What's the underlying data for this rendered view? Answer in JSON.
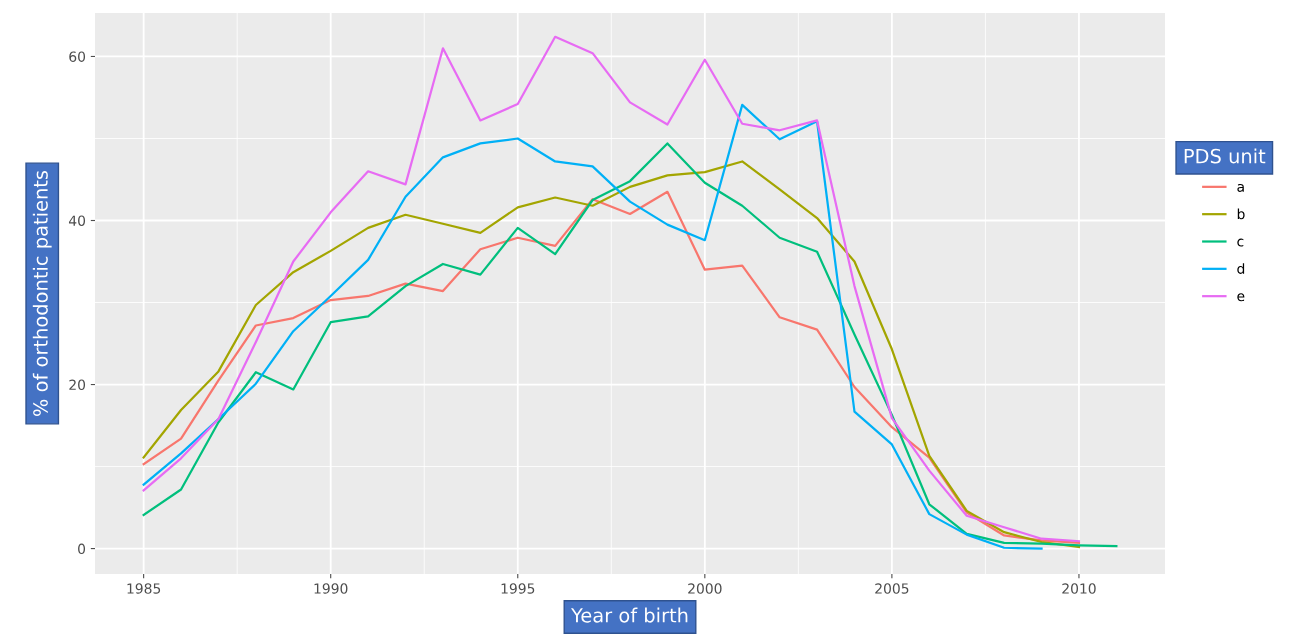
{
  "chart_data": {
    "type": "line",
    "xlabel": "Year of birth",
    "ylabel": "% of orthodontic patients",
    "legend_title": "PDS unit",
    "xlim": [
      1983.7,
      2012.3
    ],
    "ylim": [
      -3.1,
      65.3
    ],
    "xticks": [
      1985,
      1990,
      1995,
      2000,
      2005,
      2010
    ],
    "yticks": [
      0,
      20,
      40,
      60
    ],
    "grid": true,
    "legend": "right",
    "marker": "none",
    "line_style": "solid",
    "series": [
      {
        "name": "a",
        "color": "#f8766d",
        "x": [
          1985,
          1986,
          1987,
          1988,
          1989,
          1990,
          1991,
          1992,
          1993,
          1994,
          1995,
          1996,
          1997,
          1998,
          1999,
          2000,
          2001,
          2002,
          2003,
          2004,
          2005,
          2006,
          2007,
          2008,
          2009,
          2010
        ],
        "values": [
          10.3,
          13.4,
          20.5,
          27.2,
          28.1,
          30.3,
          30.8,
          32.3,
          31.4,
          36.5,
          37.9,
          36.9,
          42.6,
          40.8,
          43.5,
          34.0,
          34.5,
          28.2,
          26.7,
          19.7,
          14.8,
          11.1,
          4.4,
          1.6,
          1.0,
          0.7
        ]
      },
      {
        "name": "b",
        "color": "#a3a500",
        "x": [
          1985,
          1986,
          1987,
          1988,
          1989,
          1990,
          1991,
          1992,
          1993,
          1994,
          1995,
          1996,
          1997,
          1998,
          1999,
          2000,
          2001,
          2002,
          2003,
          2004,
          2005,
          2006,
          2007,
          2008,
          2009,
          2010
        ],
        "values": [
          11.1,
          16.9,
          21.6,
          29.7,
          33.7,
          36.3,
          39.1,
          40.7,
          39.6,
          38.5,
          41.6,
          42.8,
          41.8,
          44.1,
          45.5,
          45.9,
          47.2,
          43.8,
          40.3,
          35.0,
          24.3,
          11.3,
          4.6,
          2.0,
          0.8,
          0.2
        ]
      },
      {
        "name": "c",
        "color": "#00bf7d",
        "x": [
          1985,
          1986,
          1987,
          1988,
          1989,
          1990,
          1991,
          1992,
          1993,
          1994,
          1995,
          1996,
          1997,
          1998,
          1999,
          2000,
          2001,
          2002,
          2003,
          2004,
          2005,
          2006,
          2007,
          2008,
          2009,
          2010,
          2011
        ],
        "values": [
          4.1,
          7.2,
          15.4,
          21.5,
          19.4,
          27.6,
          28.3,
          32.0,
          34.7,
          33.4,
          39.1,
          35.9,
          42.5,
          44.8,
          49.4,
          44.6,
          41.8,
          37.9,
          36.2,
          26.1,
          16.3,
          5.4,
          1.8,
          0.7,
          0.6,
          0.4,
          0.3
        ]
      },
      {
        "name": "d",
        "color": "#00b0f6",
        "x": [
          1985,
          1986,
          1987,
          1988,
          1989,
          1990,
          1991,
          1992,
          1993,
          1994,
          1995,
          1996,
          1997,
          1998,
          1999,
          2000,
          2001,
          2002,
          2003,
          2004,
          2005,
          2006,
          2007,
          2008,
          2009
        ],
        "values": [
          7.8,
          11.6,
          15.8,
          20.1,
          26.5,
          30.8,
          35.2,
          42.9,
          47.7,
          49.4,
          50.0,
          47.2,
          46.6,
          42.3,
          39.5,
          37.6,
          54.1,
          49.9,
          52.1,
          16.7,
          12.7,
          4.2,
          1.7,
          0.1,
          0.0
        ]
      },
      {
        "name": "e",
        "color": "#e76bf3",
        "x": [
          1985,
          1986,
          1987,
          1988,
          1989,
          1990,
          1991,
          1992,
          1993,
          1994,
          1995,
          1996,
          1997,
          1998,
          1999,
          2000,
          2001,
          2002,
          2003,
          2004,
          2005,
          2006,
          2007,
          2008,
          2009,
          2010
        ],
        "values": [
          7.1,
          11.0,
          15.8,
          25.2,
          35.0,
          41.0,
          46.0,
          44.4,
          61.0,
          52.2,
          54.2,
          62.4,
          60.4,
          54.4,
          51.7,
          59.6,
          51.8,
          51.0,
          52.2,
          32.0,
          15.9,
          9.5,
          4.0,
          2.6,
          1.2,
          0.9
        ]
      }
    ]
  }
}
